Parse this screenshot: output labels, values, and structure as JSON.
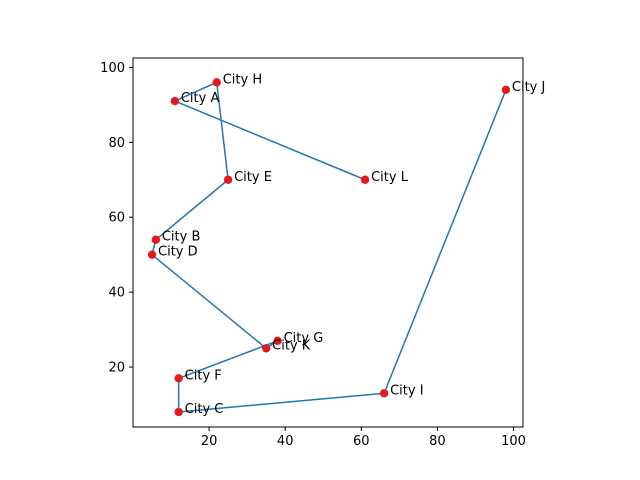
{
  "chart_data": {
    "type": "scatter",
    "title": "",
    "xlabel": "",
    "ylabel": "",
    "xlim": [
      0,
      102.5
    ],
    "ylim": [
      4,
      102.5
    ],
    "x_ticks": [
      "20",
      "40",
      "60",
      "80",
      "100"
    ],
    "y_ticks": [
      "20",
      "40",
      "60",
      "80",
      "100"
    ],
    "grid": false,
    "legend": "none",
    "colors": {
      "route_line": "#1f77b4",
      "city_marker": "#e6191b",
      "axes": "#000000",
      "background": "#ffffff"
    },
    "cities": [
      {
        "name": "City A",
        "x": 11,
        "y": 91
      },
      {
        "name": "City B",
        "x": 6,
        "y": 54
      },
      {
        "name": "City C",
        "x": 12,
        "y": 8
      },
      {
        "name": "City D",
        "x": 5,
        "y": 50
      },
      {
        "name": "City E",
        "x": 25,
        "y": 70
      },
      {
        "name": "City F",
        "x": 12,
        "y": 17
      },
      {
        "name": "City G",
        "x": 38,
        "y": 27
      },
      {
        "name": "City H",
        "x": 22,
        "y": 96
      },
      {
        "name": "City I",
        "x": 66,
        "y": 13
      },
      {
        "name": "City J",
        "x": 98,
        "y": 94
      },
      {
        "name": "City K",
        "x": 35,
        "y": 25
      },
      {
        "name": "City L",
        "x": 61,
        "y": 70
      }
    ],
    "route": [
      {
        "x": 61,
        "y": 70
      },
      {
        "x": 11,
        "y": 91
      },
      {
        "x": 22,
        "y": 96
      },
      {
        "x": 25,
        "y": 70
      },
      {
        "x": 6,
        "y": 54
      },
      {
        "x": 5,
        "y": 50
      },
      {
        "x": 35,
        "y": 25
      },
      {
        "x": 38,
        "y": 27
      },
      {
        "x": 12,
        "y": 17
      },
      {
        "x": 12,
        "y": 8
      },
      {
        "x": 66,
        "y": 13
      },
      {
        "x": 98,
        "y": 94
      }
    ]
  }
}
